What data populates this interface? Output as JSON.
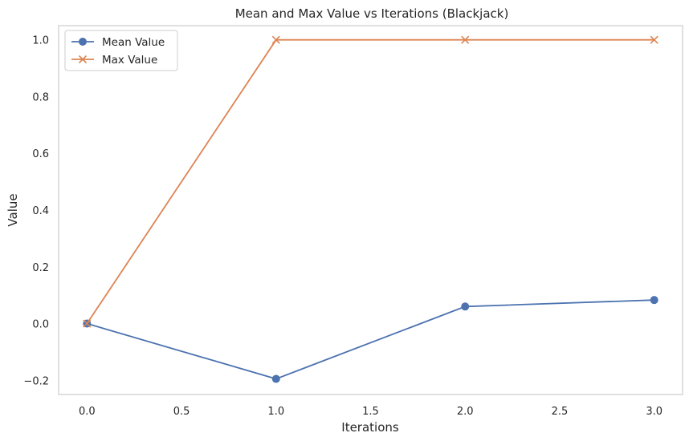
{
  "chart_data": {
    "type": "line",
    "title": "Mean and Max Value vs Iterations (Blackjack)",
    "xlabel": "Iterations",
    "ylabel": "Value",
    "xlim": [
      -0.15,
      3.15
    ],
    "ylim": [
      -0.25,
      1.05
    ],
    "xticks": [
      0.0,
      0.5,
      1.0,
      1.5,
      2.0,
      2.5,
      3.0
    ],
    "xtick_labels": [
      "0.0",
      "0.5",
      "1.0",
      "1.5",
      "2.0",
      "2.5",
      "3.0"
    ],
    "yticks": [
      -0.2,
      0.0,
      0.2,
      0.4,
      0.6,
      0.8,
      1.0
    ],
    "ytick_labels": [
      "−0.2",
      "0.0",
      "0.2",
      "0.4",
      "0.6",
      "0.8",
      "1.0"
    ],
    "grid": false,
    "legend_position": "top-left",
    "x": [
      0.0,
      1.0,
      2.0,
      3.0
    ],
    "series": [
      {
        "name": "Mean Value",
        "values": [
          0.0,
          -0.195,
          0.06,
          0.083
        ],
        "color": "#4c72b0",
        "marker": "circle"
      },
      {
        "name": "Max Value",
        "values": [
          0.0,
          1.0,
          1.0,
          1.0
        ],
        "color": "#dd8452",
        "marker": "x"
      }
    ]
  }
}
